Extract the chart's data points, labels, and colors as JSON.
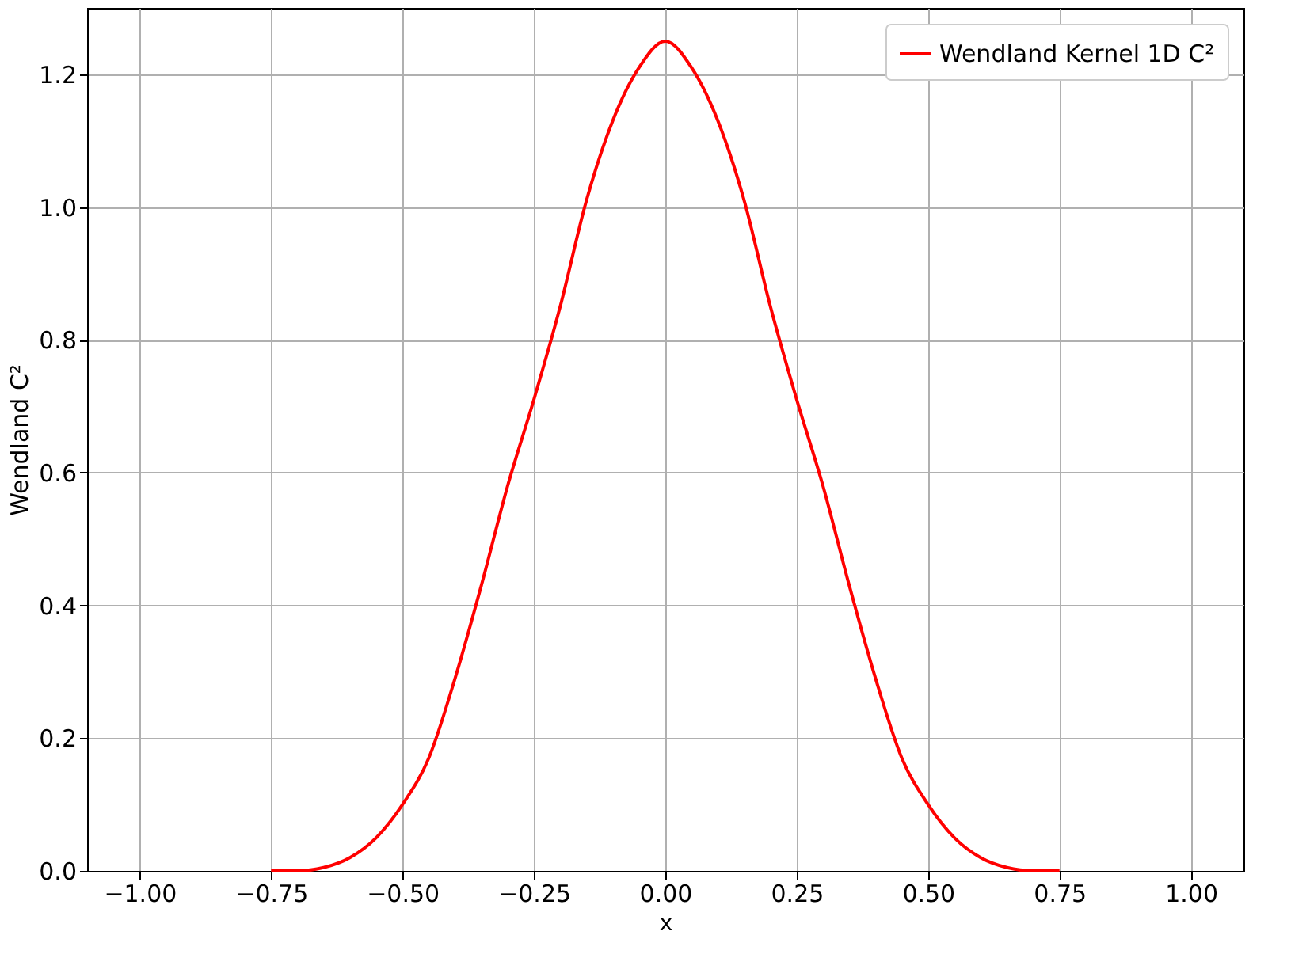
{
  "chart_data": {
    "type": "line",
    "xlabel": "x",
    "ylabel": "Wendland C²",
    "x": [
      -0.75,
      -0.7,
      -0.65,
      -0.6,
      -0.55,
      -0.5,
      -0.45,
      -0.4,
      -0.35,
      -0.3,
      -0.25,
      -0.2,
      -0.15,
      -0.1,
      -0.05,
      0,
      0.05,
      0.1,
      0.15,
      0.2,
      0.25,
      0.3,
      0.35,
      0.4,
      0.45,
      0.5,
      0.55,
      0.6,
      0.65,
      0.7,
      0.75
    ],
    "series": [
      {
        "name": "Wendland Kernel 1D C²",
        "color": "#ff0000",
        "values": [
          0,
          0,
          0.005,
          0.02,
          0.05,
          0.1,
          0.17,
          0.29,
          0.43,
          0.58,
          0.71,
          0.85,
          1.01,
          1.13,
          1.21,
          1.25,
          1.21,
          1.13,
          1.01,
          0.85,
          0.71,
          0.58,
          0.43,
          0.29,
          0.17,
          0.1,
          0.05,
          0.02,
          0.005,
          0,
          0
        ]
      }
    ],
    "xlim": [
      -1.1,
      1.1
    ],
    "ylim": [
      0,
      1.3
    ],
    "xticks": [
      {
        "value": -1,
        "label": "−1.00"
      },
      {
        "value": -0.75,
        "label": "−0.75"
      },
      {
        "value": -0.5,
        "label": "−0.50"
      },
      {
        "value": -0.25,
        "label": "−0.25"
      },
      {
        "value": 0,
        "label": "0.00"
      },
      {
        "value": 0.25,
        "label": "0.25"
      },
      {
        "value": 0.5,
        "label": "0.50"
      },
      {
        "value": 0.75,
        "label": "0.75"
      },
      {
        "value": 1,
        "label": "1.00"
      }
    ],
    "yticks": [
      {
        "value": 0,
        "label": "0.0"
      },
      {
        "value": 0.2,
        "label": "0.2"
      },
      {
        "value": 0.4,
        "label": "0.4"
      },
      {
        "value": 0.6,
        "label": "0.6"
      },
      {
        "value": 0.8,
        "label": "0.8"
      },
      {
        "value": 1.0,
        "label": "1.0"
      },
      {
        "value": 1.2,
        "label": "1.2"
      }
    ],
    "grid": true,
    "legend": "top right",
    "marker": "none",
    "line_style": "solid"
  }
}
